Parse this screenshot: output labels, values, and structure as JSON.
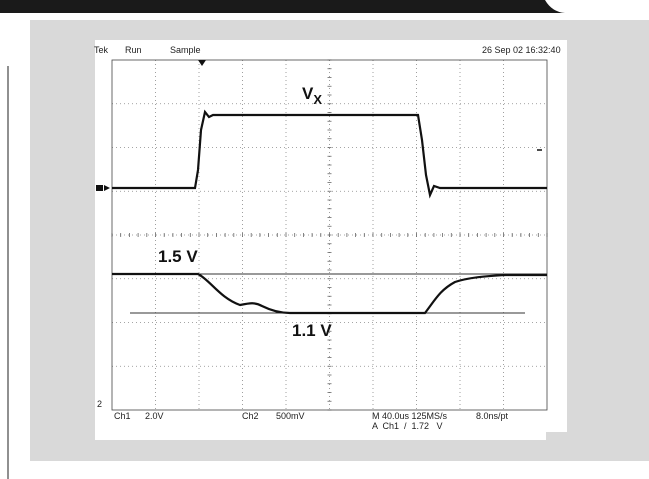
{
  "header": {
    "brand": "Tek",
    "state": "Run",
    "mode": "Sample",
    "timestamp": "26 Sep 02 16:32:40"
  },
  "labels": {
    "vx": "V",
    "vx_sub": "X",
    "high": "1.5 V",
    "low": "1.1 V",
    "ch2_marker": "2"
  },
  "footer": {
    "ch1": "Ch1",
    "ch1_scale": "2.0V",
    "ch2": "Ch2",
    "ch2_scale": "500mV",
    "timebase": "M 40.0us 125MS/s",
    "resolution": "8.0ns/pt",
    "trigger": "A  Ch1  /  1.72   V"
  }
}
